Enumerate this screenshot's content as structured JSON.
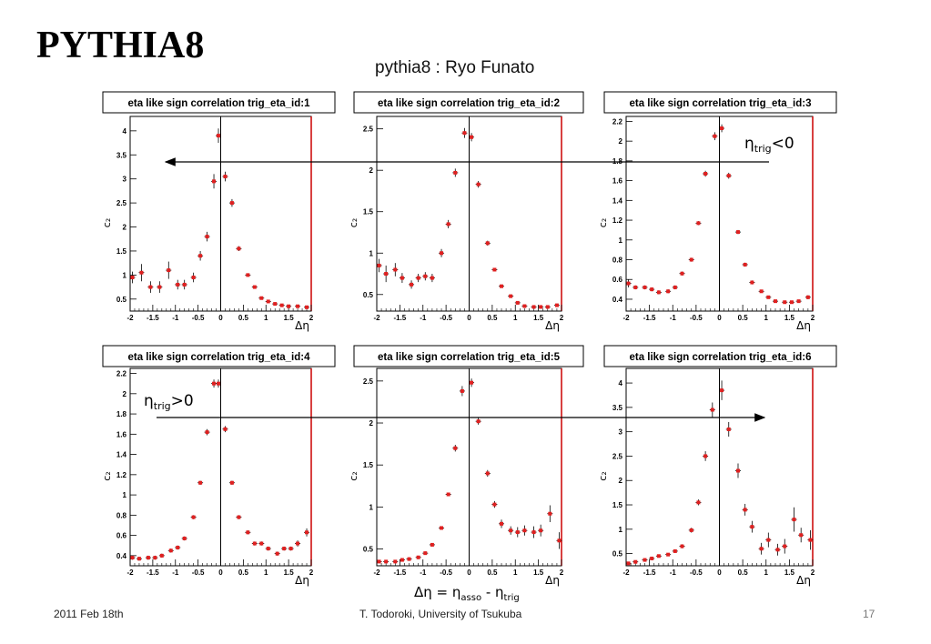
{
  "slide": {
    "title": "PYTHIA8",
    "subtitle": "pythia8 : Ryo Funato",
    "footer_date": "2011 Feb 18th",
    "footer_author": "T. Todoroki, University of Tsukuba",
    "page_number": "17"
  },
  "annotations": {
    "eta_neg": {
      "base": "η",
      "sub": "trig",
      "rel": "<0"
    },
    "eta_pos": {
      "base": "η",
      "sub": "trig",
      "rel": ">0"
    },
    "axis_formula": {
      "lhs": "Δη = η",
      "sub1": "asso",
      "mid": " - η",
      "sub2": "trig"
    }
  },
  "colors": {
    "marker": "#e02020",
    "errorbar": "#000000",
    "right_edge": "#cc0000"
  },
  "chart_data": [
    {
      "type": "scatter",
      "title": "eta like sign correlation trig_eta_id:1",
      "xlabel": "Δη",
      "ylabel": "c₂",
      "xlim": [
        -2,
        2
      ],
      "ylim": [
        0.25,
        4.3
      ],
      "xticks": [
        -2,
        -1.5,
        -1,
        -0.5,
        0,
        0.5,
        1,
        1.5,
        2
      ],
      "xticklabels": [
        "-2",
        "-1.5",
        "-1",
        "-0.5",
        "0",
        "0.5",
        "1",
        "1.5",
        "2"
      ],
      "yticks": [
        0.5,
        1,
        1.5,
        2,
        2.5,
        3,
        3.5,
        4
      ],
      "yticklabels": [
        "0.5",
        "1",
        "1.5",
        "2",
        "2.5",
        "3",
        "3.5",
        "4"
      ],
      "x": [
        -1.95,
        -1.75,
        -1.55,
        -1.35,
        -1.15,
        -0.95,
        -0.8,
        -0.6,
        -0.45,
        -0.3,
        -0.15,
        -0.05,
        0.1,
        0.25,
        0.4,
        0.6,
        0.75,
        0.9,
        1.05,
        1.2,
        1.35,
        1.5,
        1.7,
        1.9
      ],
      "y": [
        0.95,
        1.05,
        0.75,
        0.75,
        1.1,
        0.8,
        0.8,
        0.95,
        1.4,
        1.8,
        2.95,
        3.9,
        3.05,
        2.5,
        1.55,
        1.0,
        0.75,
        0.52,
        0.45,
        0.4,
        0.37,
        0.35,
        0.35,
        0.33
      ],
      "err": [
        0.12,
        0.18,
        0.12,
        0.12,
        0.18,
        0.1,
        0.1,
        0.1,
        0.1,
        0.1,
        0.15,
        0.15,
        0.1,
        0.08,
        0.05,
        0.03,
        0.02,
        0.02,
        0.02,
        0.02,
        0.02,
        0.02,
        0.02,
        0.02
      ]
    },
    {
      "type": "scatter",
      "title": "eta like sign correlation trig_eta_id:2",
      "xlabel": "Δη",
      "ylabel": "c₂",
      "xlim": [
        -2,
        2
      ],
      "ylim": [
        0.3,
        2.65
      ],
      "xticks": [
        -2,
        -1.5,
        -1,
        -0.5,
        0,
        0.5,
        1,
        1.5,
        2
      ],
      "xticklabels": [
        "-2",
        "-1.5",
        "-1",
        "-0.5",
        "0",
        "0.5",
        "1",
        "1.5",
        "2"
      ],
      "yticks": [
        0.5,
        1,
        1.5,
        2,
        2.5
      ],
      "yticklabels": [
        "0.5",
        "1",
        "1.5",
        "2",
        "2.5"
      ],
      "x": [
        -1.95,
        -1.8,
        -1.6,
        -1.45,
        -1.25,
        -1.1,
        -0.95,
        -0.8,
        -0.6,
        -0.45,
        -0.3,
        -0.1,
        0.05,
        0.2,
        0.4,
        0.55,
        0.7,
        0.9,
        1.05,
        1.2,
        1.4,
        1.55,
        1.7,
        1.9
      ],
      "y": [
        0.85,
        0.75,
        0.8,
        0.7,
        0.62,
        0.7,
        0.72,
        0.7,
        1.0,
        1.35,
        1.97,
        2.45,
        2.4,
        1.83,
        1.12,
        0.8,
        0.6,
        0.48,
        0.4,
        0.36,
        0.35,
        0.35,
        0.35,
        0.37
      ],
      "err": [
        0.08,
        0.1,
        0.08,
        0.06,
        0.05,
        0.05,
        0.05,
        0.05,
        0.05,
        0.05,
        0.05,
        0.06,
        0.05,
        0.04,
        0.03,
        0.02,
        0.02,
        0.02,
        0.02,
        0.01,
        0.01,
        0.01,
        0.01,
        0.02
      ]
    },
    {
      "type": "scatter",
      "title": "eta like sign correlation trig_eta_id:3",
      "xlabel": "Δη",
      "ylabel": "c₂",
      "xlim": [
        -2,
        2
      ],
      "ylim": [
        0.28,
        2.25
      ],
      "xticks": [
        -2,
        -1.5,
        -1,
        -0.5,
        0,
        0.5,
        1,
        1.5,
        2
      ],
      "xticklabels": [
        "-2",
        "-1.5",
        "-1",
        "-0.5",
        "0",
        "0.5",
        "1",
        "1.5",
        "2"
      ],
      "yticks": [
        0.4,
        0.6,
        0.8,
        1,
        1.2,
        1.4,
        1.6,
        1.8,
        2,
        2.2
      ],
      "yticklabels": [
        "0.4",
        "0.6",
        "0.8",
        "1",
        "1.2",
        "1.4",
        "1.6",
        "1.8",
        "2",
        "2.2"
      ],
      "x": [
        -1.95,
        -1.8,
        -1.6,
        -1.45,
        -1.3,
        -1.1,
        -0.95,
        -0.8,
        -0.6,
        -0.45,
        -0.3,
        -0.1,
        0.05,
        0.2,
        0.4,
        0.55,
        0.7,
        0.9,
        1.05,
        1.2,
        1.4,
        1.55,
        1.7,
        1.9
      ],
      "y": [
        0.56,
        0.52,
        0.52,
        0.5,
        0.47,
        0.48,
        0.52,
        0.66,
        0.8,
        1.17,
        1.67,
        2.05,
        2.13,
        1.65,
        1.08,
        0.75,
        0.57,
        0.48,
        0.42,
        0.38,
        0.37,
        0.37,
        0.38,
        0.42
      ],
      "err": [
        0.04,
        0.02,
        0.02,
        0.02,
        0.02,
        0.02,
        0.02,
        0.02,
        0.02,
        0.02,
        0.03,
        0.04,
        0.04,
        0.03,
        0.02,
        0.02,
        0.02,
        0.01,
        0.01,
        0.01,
        0.01,
        0.01,
        0.01,
        0.02
      ]
    },
    {
      "type": "scatter",
      "title": "eta like sign correlation trig_eta_id:4",
      "xlabel": "Δη",
      "ylabel": "c₂",
      "xlim": [
        -2,
        2
      ],
      "ylim": [
        0.3,
        2.25
      ],
      "xticks": [
        -2,
        -1.5,
        -1,
        -0.5,
        0,
        0.5,
        1,
        1.5,
        2
      ],
      "xticklabels": [
        "-2",
        "-1.5",
        "-1",
        "-0.5",
        "0",
        "0.5",
        "1",
        "1.5",
        "2"
      ],
      "yticks": [
        0.4,
        0.6,
        0.8,
        1,
        1.2,
        1.4,
        1.6,
        1.8,
        2,
        2.2
      ],
      "yticklabels": [
        "0.4",
        "0.6",
        "0.8",
        "1",
        "1.2",
        "1.4",
        "1.6",
        "1.8",
        "2",
        "2.2"
      ],
      "x": [
        -1.95,
        -1.8,
        -1.6,
        -1.45,
        -1.3,
        -1.1,
        -0.95,
        -0.8,
        -0.6,
        -0.45,
        -0.3,
        -0.15,
        -0.05,
        0.1,
        0.25,
        0.4,
        0.6,
        0.75,
        0.9,
        1.05,
        1.25,
        1.4,
        1.55,
        1.7,
        1.9
      ],
      "y": [
        0.38,
        0.37,
        0.38,
        0.38,
        0.4,
        0.45,
        0.48,
        0.57,
        0.78,
        1.12,
        1.62,
        2.1,
        2.1,
        1.65,
        1.12,
        0.78,
        0.63,
        0.52,
        0.52,
        0.47,
        0.42,
        0.47,
        0.47,
        0.52,
        0.63
      ],
      "err": [
        0.02,
        0.02,
        0.02,
        0.02,
        0.02,
        0.02,
        0.02,
        0.02,
        0.02,
        0.02,
        0.03,
        0.04,
        0.04,
        0.03,
        0.02,
        0.02,
        0.02,
        0.02,
        0.02,
        0.02,
        0.02,
        0.02,
        0.02,
        0.03,
        0.04
      ]
    },
    {
      "type": "scatter",
      "title": "eta like sign correlation trig_eta_id:5",
      "xlabel": "Δη",
      "ylabel": "c₂",
      "xlim": [
        -2,
        2
      ],
      "ylim": [
        0.3,
        2.65
      ],
      "xticks": [
        -2,
        -1.5,
        -1,
        -0.5,
        0,
        0.5,
        1,
        1.5,
        2
      ],
      "xticklabels": [
        "-2",
        "-1.5",
        "-1",
        "-0.5",
        "0",
        "0.5",
        "1",
        "1.5",
        "2"
      ],
      "yticks": [
        0.5,
        1,
        1.5,
        2,
        2.5
      ],
      "yticklabels": [
        "0.5",
        "1",
        "1.5",
        "2",
        "2.5"
      ],
      "x": [
        -1.95,
        -1.8,
        -1.6,
        -1.45,
        -1.3,
        -1.1,
        -0.95,
        -0.8,
        -0.6,
        -0.45,
        -0.3,
        -0.15,
        0.05,
        0.2,
        0.4,
        0.55,
        0.7,
        0.9,
        1.05,
        1.2,
        1.4,
        1.55,
        1.75,
        1.95
      ],
      "y": [
        0.35,
        0.35,
        0.35,
        0.37,
        0.38,
        0.4,
        0.45,
        0.55,
        0.75,
        1.15,
        1.7,
        2.38,
        2.48,
        2.02,
        1.4,
        1.03,
        0.8,
        0.72,
        0.7,
        0.72,
        0.7,
        0.72,
        0.92,
        0.6
      ],
      "err": [
        0.02,
        0.02,
        0.02,
        0.02,
        0.02,
        0.02,
        0.02,
        0.02,
        0.02,
        0.02,
        0.04,
        0.06,
        0.05,
        0.04,
        0.04,
        0.04,
        0.05,
        0.05,
        0.06,
        0.06,
        0.07,
        0.07,
        0.1,
        0.1
      ]
    },
    {
      "type": "scatter",
      "title": "eta like sign correlation trig_eta_id:6",
      "xlabel": "Δη",
      "ylabel": "c₂",
      "xlim": [
        -2,
        2
      ],
      "ylim": [
        0.25,
        4.3
      ],
      "xticks": [
        -2,
        -1.5,
        -1,
        -0.5,
        0,
        0.5,
        1,
        1.5,
        2
      ],
      "xticklabels": [
        "-2",
        "-1.5",
        "-1",
        "-0.5",
        "0",
        "0.5",
        "1",
        "1.5",
        "2"
      ],
      "yticks": [
        0.5,
        1,
        1.5,
        2,
        2.5,
        3,
        3.5,
        4
      ],
      "yticklabels": [
        "0.5",
        "1",
        "1.5",
        "2",
        "2.5",
        "3",
        "3.5",
        "4"
      ],
      "x": [
        -1.95,
        -1.8,
        -1.6,
        -1.45,
        -1.3,
        -1.1,
        -0.95,
        -0.8,
        -0.6,
        -0.45,
        -0.3,
        -0.15,
        0.05,
        0.2,
        0.4,
        0.55,
        0.7,
        0.9,
        1.05,
        1.25,
        1.4,
        1.6,
        1.75,
        1.95
      ],
      "y": [
        0.3,
        0.33,
        0.37,
        0.4,
        0.45,
        0.48,
        0.55,
        0.65,
        0.98,
        1.55,
        2.5,
        3.45,
        3.85,
        3.05,
        2.2,
        1.4,
        1.05,
        0.6,
        0.78,
        0.58,
        0.65,
        1.2,
        0.88,
        0.78
      ],
      "err": [
        0.03,
        0.03,
        0.03,
        0.03,
        0.03,
        0.03,
        0.03,
        0.04,
        0.05,
        0.06,
        0.1,
        0.15,
        0.2,
        0.15,
        0.15,
        0.12,
        0.12,
        0.12,
        0.15,
        0.12,
        0.15,
        0.25,
        0.15,
        0.2
      ]
    }
  ]
}
